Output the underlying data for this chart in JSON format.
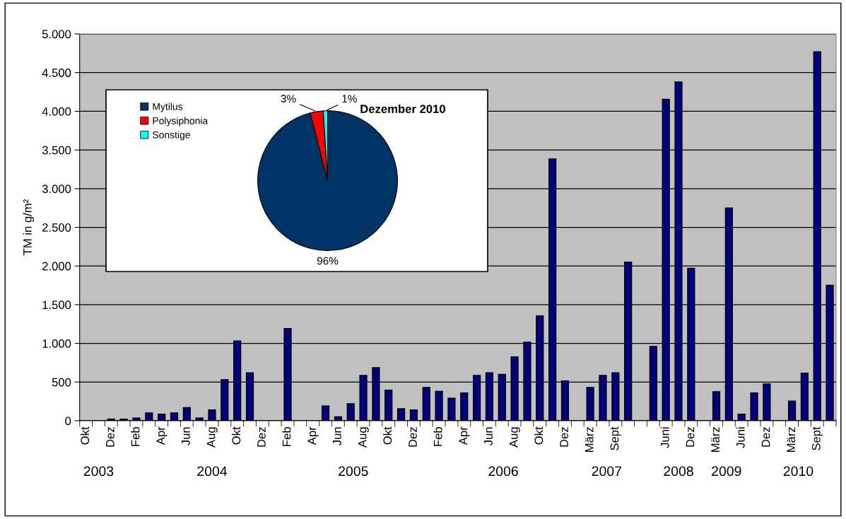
{
  "chart_data": [
    {
      "type": "bar",
      "ylabel": "TM in g/m²",
      "categories": [
        "Okt",
        null,
        "Dez",
        null,
        "Feb",
        null,
        "Apr",
        null,
        "Jun",
        null,
        "Aug",
        null,
        "Okt",
        null,
        "Dez",
        null,
        "Feb",
        null,
        "Apr",
        null,
        "Jun",
        null,
        "Aug",
        null,
        "Okt",
        null,
        "Dez",
        null,
        "Feb",
        null,
        "Apr",
        null,
        "Jun",
        null,
        "Aug",
        null,
        "Okt",
        null,
        "Dez",
        null,
        "März",
        null,
        "Sept",
        null,
        null,
        null,
        "Juni",
        null,
        "Dez",
        null,
        "März",
        null,
        "Juni",
        null,
        "Dez",
        null,
        "März",
        null,
        "Sept",
        null
      ],
      "values": [
        null,
        null,
        20,
        20,
        35,
        100,
        85,
        100,
        170,
        35,
        140,
        530,
        1030,
        620,
        null,
        null,
        1190,
        null,
        null,
        190,
        50,
        220,
        585,
        685,
        395,
        155,
        140,
        430,
        380,
        290,
        360,
        585,
        620,
        600,
        825,
        1015,
        1355,
        3385,
        515,
        null,
        430,
        585,
        620,
        2050,
        null,
        960,
        4155,
        4380,
        1970,
        null,
        375,
        2750,
        85,
        360,
        475,
        null,
        255,
        615,
        4770,
        1750
      ],
      "color": "#000080",
      "ylim": [
        0,
        5000
      ],
      "yticks": [
        0,
        500,
        {
          "value": 1000,
          "label": "1.000"
        },
        {
          "value": 1500,
          "label": "1.500"
        },
        {
          "value": 2000,
          "label": "2.000"
        },
        {
          "value": 2500,
          "label": "2.500"
        },
        {
          "value": 3000,
          "label": "3.000"
        },
        {
          "value": 3500,
          "label": "3.500"
        },
        {
          "value": 4000,
          "label": "4.000"
        },
        {
          "value": 4500,
          "label": "4.500"
        },
        {
          "value": 5000,
          "label": "5.000"
        }
      ],
      "grid": "y",
      "annotations": [
        "2003",
        "2004",
        "2005",
        "2006",
        "2007",
        "2008",
        "2009",
        "2010"
      ]
    },
    {
      "type": "pie",
      "title": "Dezember 2010",
      "categories": [
        "Mytilus",
        "Polysiphonia",
        "Sonstige"
      ],
      "values": [
        96,
        3,
        1
      ],
      "colors": [
        "#003366",
        "#ff0000",
        "#00ffff"
      ],
      "value_labels": [
        "96%",
        "3%",
        "1%"
      ],
      "legend": "top left"
    }
  ]
}
